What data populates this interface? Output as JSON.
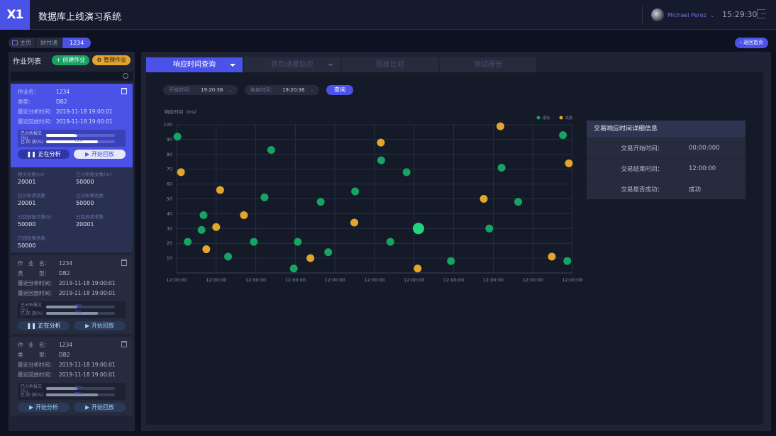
{
  "app": {
    "logo": "X1",
    "title": "数据库上线演习系统"
  },
  "user": {
    "name": "Michael Perez",
    "time": "15:29:30"
  },
  "breadcrumb": [
    "主页",
    "财付通",
    "1234"
  ],
  "back_button": "返回首页",
  "sidebar": {
    "title": "作业列表",
    "create": "创建作业",
    "manage": "管理作业",
    "selected_job": {
      "name_label": "作业名：",
      "name": "1234",
      "type_label": "类型：",
      "type": "DB2",
      "analysis_label": "最近分析时间：",
      "analysis_time": "2019-11-18 19:00:01",
      "replay_label": "最近回放时间：",
      "replay_time": "2019-11-18 19:00:01",
      "progress": [
        {
          "label": "已分析报文(%)",
          "value": 45,
          "text": "45%"
        },
        {
          "label": "已 回 放(%)",
          "value": 75,
          "text": "75%"
        }
      ],
      "btn_left": "正在分析",
      "btn_right": "开始回放"
    },
    "stats": [
      {
        "label": "报文总数(m)",
        "value": "20001"
      },
      {
        "label": "已分析报文数(m)",
        "value": "50000"
      },
      {
        "label": "已分析请求数",
        "value": "20001"
      },
      {
        "label": "已分析事务数",
        "value": "50000"
      },
      {
        "label": "已回放报文数(k)",
        "value": "50000"
      },
      {
        "label": "已回放请求数",
        "value": "20001"
      },
      {
        "label": "已回放事务数",
        "value": "50000"
      }
    ],
    "jobs": [
      {
        "name_label": "作　业　名：",
        "name": "1234",
        "type_label": "类　　　型：",
        "type": "DB2",
        "analysis_label": "最近分析时间：",
        "analysis_time": "2019-11-18 19:00:01",
        "replay_label": "最近回放时间：",
        "replay_time": "2019-11-18 19:00:01",
        "progress": [
          {
            "label": "已分析报文(%)",
            "value": 45,
            "text": "45%"
          },
          {
            "label": "已 回 放(%)",
            "value": 75,
            "text": "75%"
          }
        ],
        "btn_left": "正在分析",
        "btn_right": "开始回放"
      },
      {
        "name_label": "作　业　名：",
        "name": "1234",
        "type_label": "类　　　型：",
        "type": "DB2",
        "analysis_label": "最近分析时间：",
        "analysis_time": "2019-11-18 19:00:01",
        "replay_label": "最近回放时间：",
        "replay_time": "2019-11-18 19:00:01",
        "progress": [
          {
            "label": "已分析报文(%)",
            "value": 45,
            "text": "45%"
          },
          {
            "label": "已 回 放(%)",
            "value": 75,
            "text": "75%"
          }
        ],
        "btn_left": "开始分析",
        "btn_right": "开始回放"
      }
    ]
  },
  "tabs": [
    "响应时间查询",
    "抓包进度监控",
    "回放比对",
    "测试报告"
  ],
  "filters": {
    "start_label": "开始时间：",
    "start_value": "19:20:36",
    "end_label": "结束时间：",
    "end_value": "19:20:36",
    "query": "查询"
  },
  "detail": {
    "title": "交易响应时间详细信息",
    "rows": [
      {
        "label": "交易开始时间：",
        "value": "00:00:000"
      },
      {
        "label": "交易结束时间：",
        "value": "12:00:00"
      },
      {
        "label": "交易是否成功：",
        "value": "成功"
      }
    ]
  },
  "colors": {
    "accent": "#4b52e8",
    "success": "#17a362",
    "fail": "#e3a52a"
  },
  "chart_data": {
    "type": "scatter",
    "ylabel": "响应时间（ms）",
    "ylim": [
      0,
      100
    ],
    "yticks": [
      10,
      20,
      30,
      40,
      50,
      60,
      70,
      80,
      90,
      100
    ],
    "xticks": [
      "12:00:00",
      "12:00:00",
      "12:00:00",
      "12:00:00",
      "12:00:00",
      "12:00:00",
      "12:00:00",
      "12:00:00",
      "12:00:00",
      "12:00:00",
      "12:00:00"
    ],
    "legend": "top-right",
    "series": [
      {
        "name": "成功",
        "color": "#17a362",
        "points": [
          [
            0.02,
            92
          ],
          [
            0.28,
            21
          ],
          [
            0.63,
            29
          ],
          [
            0.68,
            39
          ],
          [
            1.3,
            11
          ],
          [
            1.95,
            21
          ],
          [
            2.22,
            51
          ],
          [
            2.39,
            83
          ],
          [
            2.96,
            3
          ],
          [
            3.06,
            21
          ],
          [
            3.64,
            48
          ],
          [
            3.83,
            14
          ],
          [
            4.51,
            55
          ],
          [
            5.17,
            76
          ],
          [
            5.4,
            21
          ],
          [
            5.81,
            68
          ],
          [
            6.11,
            30
          ],
          [
            6.93,
            8
          ],
          [
            7.9,
            30
          ],
          [
            8.21,
            71
          ],
          [
            8.63,
            48
          ],
          [
            9.76,
            93
          ],
          [
            9.87,
            8
          ]
        ],
        "highlight": [
          6.11,
          30
        ]
      },
      {
        "name": "失败",
        "color": "#e3a52a",
        "points": [
          [
            0.11,
            68
          ],
          [
            0.75,
            16
          ],
          [
            1.0,
            31
          ],
          [
            1.1,
            56
          ],
          [
            1.7,
            39
          ],
          [
            3.38,
            10
          ],
          [
            4.49,
            34
          ],
          [
            5.16,
            88
          ],
          [
            6.09,
            3
          ],
          [
            7.76,
            50
          ],
          [
            8.18,
            99
          ],
          [
            9.48,
            11
          ],
          [
            9.91,
            74
          ]
        ]
      }
    ]
  }
}
